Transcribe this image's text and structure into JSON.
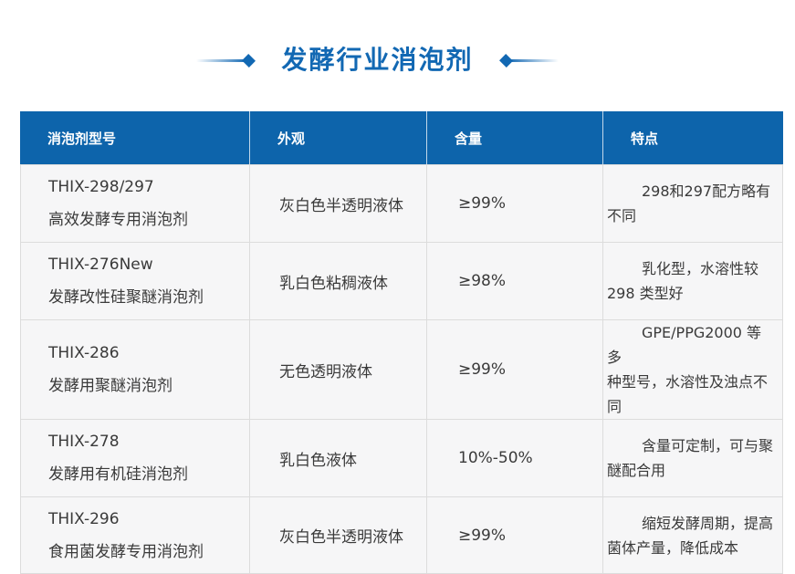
{
  "page": {
    "title": "发酵行业消泡剂"
  },
  "colors": {
    "primary_blue": "#0d64ab",
    "title_blue": "#1268b3",
    "row_bg": "#f6f6f7",
    "border": "#dcdcdc",
    "text": "#3a3a3a"
  },
  "icons": {
    "left_decoration": "line-with-diamond-icon",
    "right_decoration": "diamond-with-line-icon"
  },
  "table": {
    "headers": [
      "消泡剂型号",
      "外观",
      "含量",
      "特点"
    ],
    "rows": [
      {
        "model": "THIX-298/297\n高效发酵专用消泡剂",
        "appearance": "灰白色半透明液体",
        "content": "≥99%",
        "features": "298和297配方略有\n不同"
      },
      {
        "model": "THIX-276New\n发酵改性硅聚醚消泡剂",
        "appearance": "乳白色粘稠液体",
        "content": "≥98%",
        "features": "乳化型，水溶性较\n298 类型好"
      },
      {
        "model": "THIX-286\n发酵用聚醚消泡剂",
        "appearance": "无色透明液体",
        "content": "≥99%",
        "features": "GPE/PPG2000 等多\n种型号，水溶性及浊点不\n同"
      },
      {
        "model": "THIX-278\n发酵用有机硅消泡剂",
        "appearance": "乳白色液体",
        "content": "10%-50%",
        "features": "含量可定制，可与聚\n醚配合用"
      },
      {
        "model": "THIX-296\n食用菌发酵专用消泡剂",
        "appearance": "灰白色半透明液体",
        "content": "≥99%",
        "features": "缩短发酵周期，提高\n菌体产量，降低成本"
      }
    ]
  }
}
